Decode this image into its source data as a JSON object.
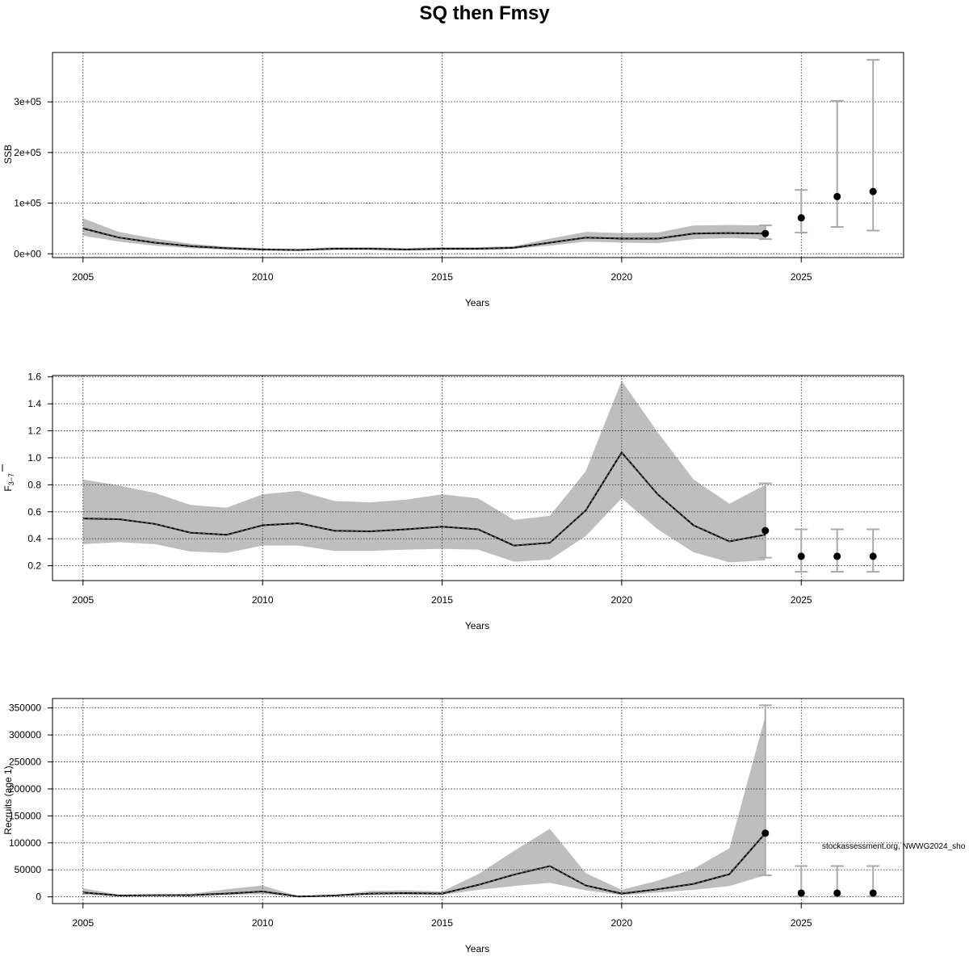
{
  "title": "SQ then Fmsy",
  "footnote": "stockassessment.org, NWWG2024_sho",
  "chart_data": [
    {
      "type": "line",
      "panel": "ssb",
      "xlabel": "Years",
      "ylabel": "SSB",
      "xlim": [
        2004.15,
        2027.85
      ],
      "ylim": [
        -7500,
        397500
      ],
      "xticks": [
        2005,
        2010,
        2015,
        2020,
        2025
      ],
      "yticks": [
        0,
        100000,
        200000,
        300000
      ],
      "ytick_labels": [
        "0e+00",
        "1e+05",
        "2e+05",
        "3e+05"
      ],
      "grid": true,
      "x": [
        2005,
        2006,
        2007,
        2008,
        2009,
        2010,
        2011,
        2012,
        2013,
        2014,
        2015,
        2016,
        2017,
        2018,
        2019,
        2020,
        2021,
        2022,
        2023,
        2024
      ],
      "estimate": [
        50000,
        32000,
        22000,
        15000,
        11000,
        8500,
        7500,
        10000,
        10000,
        8500,
        10000,
        10000,
        12000,
        22000,
        32000,
        30000,
        30000,
        40000,
        41000,
        40000
      ],
      "lower": [
        36000,
        24000,
        16000,
        11000,
        8000,
        6500,
        6000,
        7500,
        7500,
        6500,
        7500,
        7500,
        9500,
        16000,
        24000,
        22000,
        21000,
        29000,
        31000,
        29000
      ],
      "upper": [
        70000,
        43000,
        30000,
        20000,
        14000,
        11000,
        9500,
        13000,
        13000,
        11000,
        13000,
        13000,
        15000,
        30000,
        43000,
        41000,
        42000,
        56000,
        57000,
        56000
      ],
      "forecast": {
        "x": [
          2024,
          2025,
          2026,
          2027
        ],
        "estimate": [
          40000,
          71000,
          113000,
          123000
        ],
        "lower": [
          29000,
          42000,
          53000,
          46000
        ],
        "upper": [
          56000,
          126000,
          302000,
          383000
        ]
      }
    },
    {
      "type": "line",
      "panel": "fbar",
      "xlabel": "Years",
      "ylabel_main": "F",
      "ylabel_sub": "3−7",
      "xlim": [
        2004.15,
        2027.85
      ],
      "ylim": [
        0.09,
        1.61
      ],
      "xticks": [
        2005,
        2010,
        2015,
        2020,
        2025
      ],
      "yticks": [
        0.2,
        0.4,
        0.6,
        0.8,
        1.0,
        1.2,
        1.4,
        1.6
      ],
      "ytick_labels": [
        "0.2",
        "0.4",
        "0.6",
        "0.8",
        "1.0",
        "1.2",
        "1.4",
        "1.6"
      ],
      "grid": true,
      "x": [
        2005,
        2006,
        2007,
        2008,
        2009,
        2010,
        2011,
        2012,
        2013,
        2014,
        2015,
        2016,
        2017,
        2018,
        2019,
        2020,
        2021,
        2022,
        2023,
        2024
      ],
      "estimate": [
        0.55,
        0.545,
        0.51,
        0.445,
        0.43,
        0.5,
        0.515,
        0.46,
        0.455,
        0.47,
        0.49,
        0.47,
        0.35,
        0.37,
        0.61,
        1.04,
        0.73,
        0.5,
        0.38,
        0.43
      ],
      "lower": [
        0.36,
        0.375,
        0.36,
        0.305,
        0.295,
        0.35,
        0.35,
        0.31,
        0.31,
        0.32,
        0.325,
        0.32,
        0.23,
        0.245,
        0.42,
        0.7,
        0.47,
        0.3,
        0.225,
        0.24
      ],
      "upper": [
        0.84,
        0.795,
        0.74,
        0.65,
        0.63,
        0.73,
        0.755,
        0.68,
        0.67,
        0.69,
        0.73,
        0.7,
        0.54,
        0.57,
        0.9,
        1.57,
        1.19,
        0.84,
        0.66,
        0.8
      ],
      "forecast": {
        "x": [
          2024,
          2025,
          2026,
          2027
        ],
        "estimate": [
          0.46,
          0.27,
          0.27,
          0.27
        ],
        "lower": [
          0.26,
          0.155,
          0.155,
          0.155
        ],
        "upper": [
          0.81,
          0.47,
          0.47,
          0.47
        ]
      }
    },
    {
      "type": "line",
      "panel": "recruits",
      "xlabel": "Years",
      "ylabel": "Recruits (age 1)",
      "xlim": [
        2004.15,
        2027.85
      ],
      "ylim": [
        -12500,
        367500
      ],
      "xticks": [
        2005,
        2010,
        2015,
        2020,
        2025
      ],
      "yticks": [
        0,
        50000,
        100000,
        150000,
        200000,
        250000,
        300000,
        350000
      ],
      "ytick_labels": [
        "0",
        "50000",
        "100000",
        "150000",
        "200000",
        "250000",
        "300000",
        "350000"
      ],
      "grid": true,
      "x": [
        2005,
        2006,
        2007,
        2008,
        2009,
        2010,
        2011,
        2012,
        2013,
        2014,
        2015,
        2016,
        2017,
        2018,
        2019,
        2020,
        2021,
        2022,
        2023,
        2024
      ],
      "estimate": [
        8000,
        2500,
        3000,
        3000,
        6000,
        10000,
        500,
        2500,
        6000,
        7000,
        6000,
        22000,
        41000,
        57000,
        21000,
        6000,
        14000,
        24000,
        42000,
        118000
      ],
      "lower": [
        4000,
        1500,
        2000,
        1500,
        3500,
        5000,
        200,
        1500,
        3500,
        4000,
        3500,
        13000,
        20000,
        26000,
        12000,
        3000,
        8000,
        13000,
        20000,
        40000
      ],
      "upper": [
        16000,
        4000,
        4500,
        5500,
        14000,
        21000,
        1000,
        3500,
        11000,
        12000,
        10000,
        42000,
        85000,
        126000,
        44000,
        13000,
        30000,
        52000,
        90000,
        335000
      ],
      "forecast": {
        "x": [
          2024,
          2025,
          2026,
          2027
        ],
        "estimate": [
          118000,
          7000,
          7000,
          7000
        ],
        "lower": [
          40000,
          500,
          500,
          500
        ],
        "upper": [
          355000,
          57000,
          57000,
          57000
        ]
      }
    }
  ]
}
